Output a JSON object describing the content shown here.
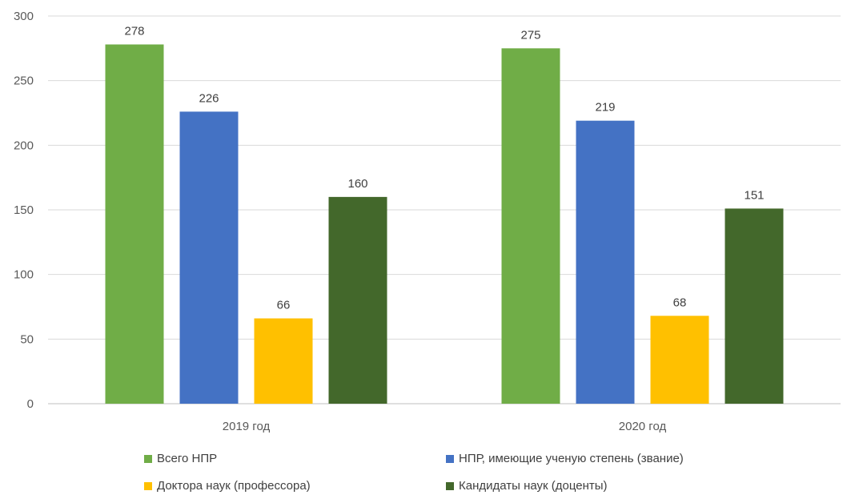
{
  "chart_data": {
    "type": "bar",
    "title": "",
    "xlabel": "",
    "ylabel": "",
    "categories": [
      "2019 год",
      "2020 год"
    ],
    "ylim": [
      0,
      300
    ],
    "yticks": [
      0,
      50,
      100,
      150,
      200,
      250,
      300
    ],
    "grid": true,
    "legend_position": "bottom",
    "series": [
      {
        "name": "Всего НПР",
        "color": "#70ad47",
        "values": [
          278,
          275
        ]
      },
      {
        "name": "НПР, имеющие ученую степень (звание)",
        "color": "#4472c4",
        "values": [
          226,
          219
        ]
      },
      {
        "name": "Доктора наук (профессора)",
        "color": "#ffc000",
        "values": [
          66,
          68
        ]
      },
      {
        "name": "Кандидаты наук (доценты)",
        "color": "#43682b",
        "values": [
          160,
          151
        ]
      }
    ]
  }
}
